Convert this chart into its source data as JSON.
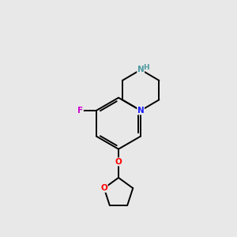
{
  "bg_color": "#e8e8e8",
  "bond_color": "#000000",
  "N_color": "#1a1aff",
  "NH_color": "#4e9aa0",
  "O_color": "#ff0000",
  "F_color": "#cc00cc",
  "line_width": 1.4,
  "figsize": [
    3.0,
    3.0
  ],
  "dpi": 100,
  "xlim": [
    2.5,
    7.5
  ],
  "ylim": [
    0.2,
    9.8
  ]
}
